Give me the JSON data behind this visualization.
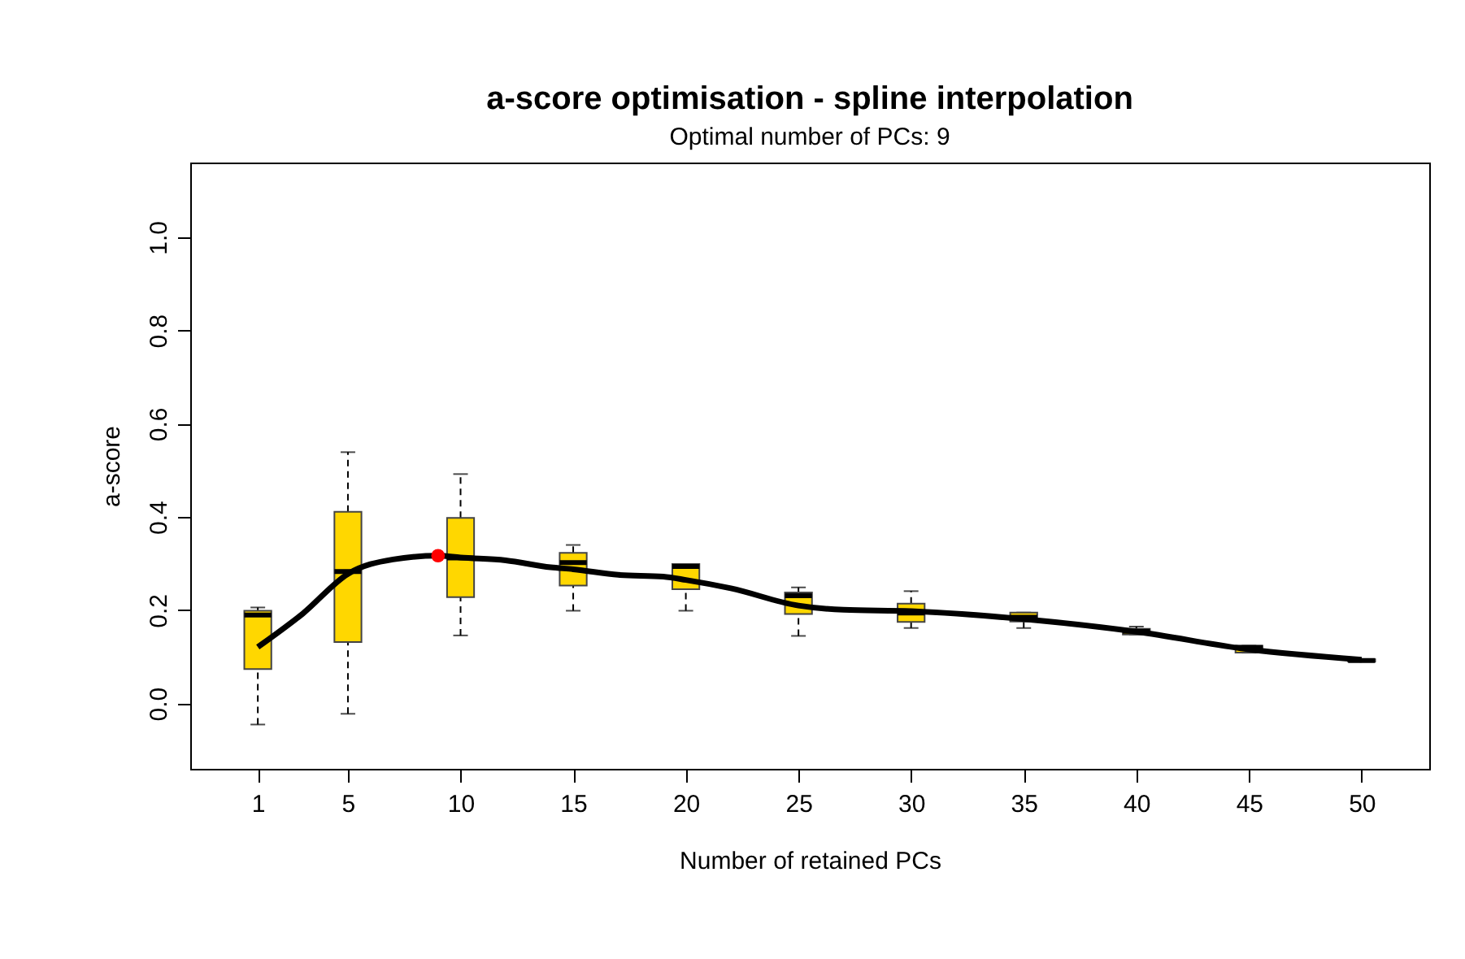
{
  "chart_data": {
    "type": "box",
    "title": "a-score optimisation - spline interpolation",
    "subtitle": "Optimal number of PCs: 9",
    "xlabel": "Number of retained PCs",
    "ylabel": "a-score",
    "xlim": [
      -2,
      53
    ],
    "ylim": [
      -0.14,
      1.16
    ],
    "xticks": [
      1,
      5,
      10,
      15,
      20,
      25,
      30,
      35,
      40,
      45,
      50
    ],
    "yticks": [
      {
        "value": 0,
        "label": "0.0"
      },
      {
        "value": 0.2,
        "label": "0.2"
      },
      {
        "value": 0.4,
        "label": "0.4"
      },
      {
        "value": 0.6,
        "label": "0.6"
      },
      {
        "value": 0.8,
        "label": "0.8"
      },
      {
        "value": 1,
        "label": "1.0"
      }
    ],
    "grid": false,
    "series": [
      {
        "color": "#ffd700",
        "x": [
          1,
          5,
          10,
          15,
          20,
          25,
          30,
          35,
          40,
          45,
          50
        ],
        "boxes": [
          {
            "low": -0.045,
            "q1": 0.074,
            "median": 0.19,
            "q3": 0.199,
            "high": 0.206
          },
          {
            "low": -0.022,
            "q1": 0.132,
            "median": 0.283,
            "q3": 0.411,
            "high": 0.539
          },
          {
            "low": 0.146,
            "q1": 0.228,
            "median": 0.312,
            "q3": 0.398,
            "high": 0.492
          },
          {
            "low": 0.199,
            "q1": 0.253,
            "median": 0.302,
            "q3": 0.323,
            "high": 0.34
          },
          {
            "low": 0.199,
            "q1": 0.245,
            "median": 0.294,
            "q3": 0.299,
            "high": 0.299
          },
          {
            "low": 0.145,
            "q1": 0.192,
            "median": 0.231,
            "q3": 0.238,
            "high": 0.249
          },
          {
            "low": 0.162,
            "q1": 0.175,
            "median": 0.194,
            "q3": 0.214,
            "high": 0.241
          },
          {
            "low": 0.162,
            "q1": 0.176,
            "median": 0.185,
            "q3": 0.195,
            "high": 0.195
          },
          {
            "low": 0.148,
            "q1": 0.148,
            "median": 0.155,
            "q3": 0.16,
            "high": 0.165
          },
          {
            "low": 0.109,
            "q1": 0.109,
            "median": 0.12,
            "q3": 0.124,
            "high": 0.124
          },
          {
            "low": 0.09,
            "q1": 0.09,
            "median": 0.092,
            "q3": 0.095,
            "high": 0.095
          }
        ]
      },
      {
        "type": "line",
        "color": "#000000",
        "line_style": "solid",
        "marker": "none",
        "x": [
          1,
          3,
          5,
          7,
          9,
          10,
          12,
          14,
          15,
          17,
          19,
          20,
          22,
          25,
          27,
          30,
          35,
          40,
          45,
          50
        ],
        "values": [
          0.121,
          0.193,
          0.278,
          0.309,
          0.317,
          0.313,
          0.307,
          0.292,
          0.288,
          0.276,
          0.272,
          0.265,
          0.247,
          0.21,
          0.201,
          0.198,
          0.181,
          0.154,
          0.116,
          0.094
        ]
      },
      {
        "type": "scatter",
        "color": "#ff0000",
        "marker": "circle",
        "x": [
          9
        ],
        "values": [
          0.317
        ]
      }
    ]
  }
}
